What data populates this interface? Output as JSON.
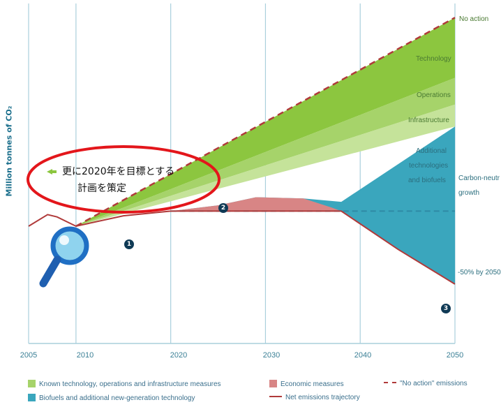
{
  "chart_data": {
    "type": "area",
    "ylabel": "Million tonnes of CO₂",
    "x_ticks": [
      "2005",
      "2010",
      "2020",
      "2030",
      "2040",
      "2050"
    ],
    "xlim": [
      2005,
      2050
    ],
    "grid": "vertical",
    "series": [
      {
        "name": "\"No action\" emissions",
        "style": "dashed",
        "points": [
          [
            2010,
            100
          ],
          [
            2020,
            145
          ],
          [
            2030,
            190
          ],
          [
            2040,
            235
          ],
          [
            2050,
            280
          ]
        ]
      },
      {
        "name": "Net emissions trajectory",
        "style": "solid",
        "points": [
          [
            2005,
            100
          ],
          [
            2010,
            100
          ],
          [
            2020,
            113
          ],
          [
            2030,
            113
          ],
          [
            2038,
            113
          ],
          [
            2044,
            80
          ],
          [
            2050,
            50
          ]
        ]
      },
      {
        "name": "Carbon-neutral growth",
        "style": "dashed",
        "points": [
          [
            2020,
            113
          ],
          [
            2050,
            113
          ]
        ]
      }
    ],
    "wedges": [
      "Technology",
      "Operations",
      "Infrastructure",
      "Additional technologies and biofuels",
      "Economic measures"
    ],
    "annotations": {
      "no_action": "No action",
      "technology": "Technology",
      "operations": "Operations",
      "infrastructure": "Infrastructure",
      "additional_1": "Additional",
      "additional_2": "technologies",
      "additional_3": "and biofuels",
      "carbon_neutral_1": "Carbon-neutr",
      "carbon_neutral_2": "growth",
      "target_2050": "-50% by 2050"
    },
    "markers": [
      "1",
      "2",
      "3"
    ],
    "overlay_text_1": "更に2020年を目標とする",
    "overlay_text_2": "計画を策定"
  },
  "legend": {
    "known_tech": "Known technology, operations and infrastructure measures",
    "biofuels": "Biofuels and additional new-generation technology",
    "economic": "Economic measures",
    "no_action": "\"No action\" emissions",
    "net": "Net emissions trajectory"
  },
  "colors": {
    "technology": "#8cc63f",
    "operations": "#a6d36a",
    "infrastructure": "#c5e39a",
    "biofuels": "#3aa6bd",
    "economic": "#d88585",
    "no_action": "#b03a3a",
    "net": "#b03a3a",
    "grid": "#a9cfdc",
    "carbon_neutral": "#2f8aa5"
  }
}
